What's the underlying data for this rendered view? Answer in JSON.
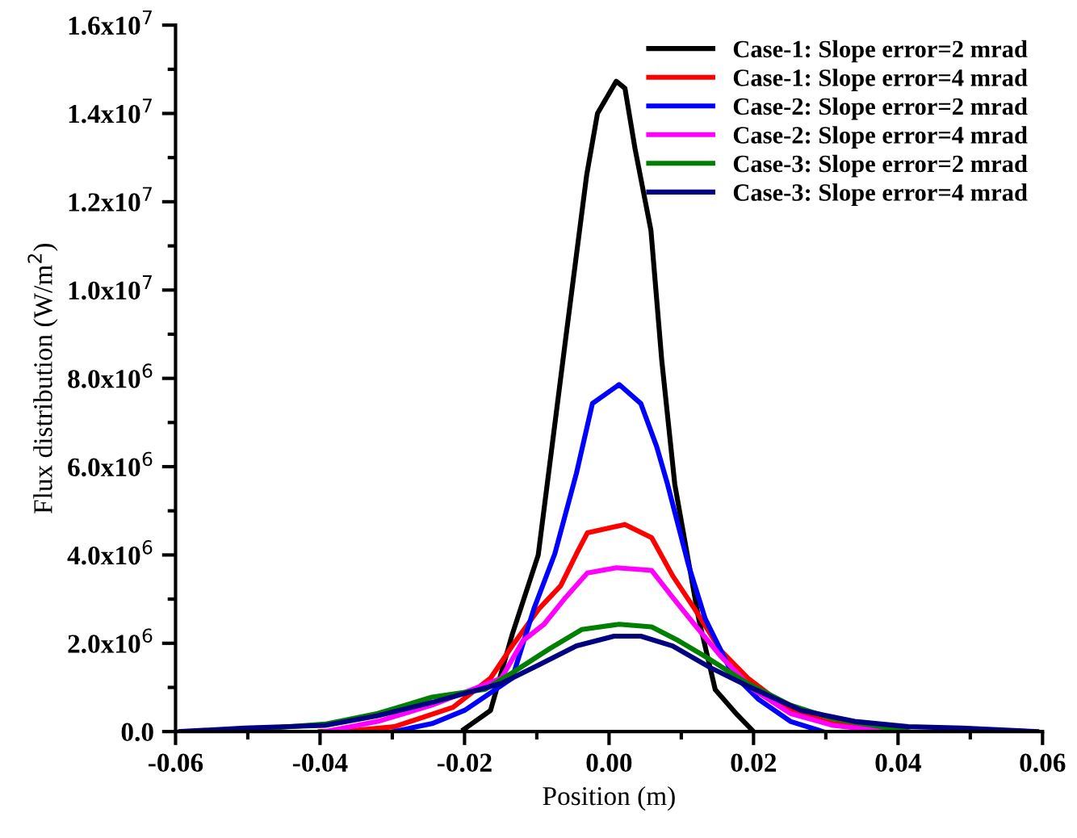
{
  "chart_data": {
    "type": "line",
    "xlabel": "Position (m)",
    "ylabel": "Flux distribution (W/m$^{2}$)",
    "xlim": [
      -0.06,
      0.06
    ],
    "xticks": [
      {
        "value": -0.06,
        "label": "-0.06"
      },
      {
        "value": -0.04,
        "label": "-0.04"
      },
      {
        "value": -0.02,
        "label": "-0.02"
      },
      {
        "value": 0,
        "label": "0.00"
      },
      {
        "value": 0.02,
        "label": "0.02"
      },
      {
        "value": 0.04,
        "label": "0.04"
      },
      {
        "value": 0.06,
        "label": "0.06"
      }
    ],
    "ylim": [
      0,
      16000000
    ],
    "yticks": [
      {
        "value": 0,
        "label": "0.0"
      },
      {
        "value": 2000000,
        "label": "2.0x10$^{6}$"
      },
      {
        "value": 4000000,
        "label": "4.0x10$^{6}$"
      },
      {
        "value": 6000000,
        "label": "6.0x10$^{6}$"
      },
      {
        "value": 8000000,
        "label": "8.0x10$^{6}$"
      },
      {
        "value": 10000000,
        "label": "1.0x10$^{7}$"
      },
      {
        "value": 12000000,
        "label": "1.2x10$^{7}$"
      },
      {
        "value": 14000000,
        "label": "1.4x10$^{7}$"
      },
      {
        "value": 16000000,
        "label": "1.6x10$^{7}$"
      }
    ],
    "grid": false,
    "legend": "top right",
    "marker": "none",
    "line_style": "solid",
    "series": [
      {
        "name": "Case-1: Slope error=2 mrad",
        "color": "#000000",
        "x": [
          -0.0201,
          -0.0164,
          -0.0134,
          -0.0098,
          -0.006,
          -0.0031,
          -0.0016,
          0.001,
          0.0022,
          0.0036,
          0.0058,
          0.0073,
          0.0091,
          0.0124,
          0.0147,
          0.0178,
          0.02
        ],
        "values": [
          50000,
          480000,
          2200000,
          4000000,
          8900000,
          12600000,
          14000000,
          14730000,
          14570000,
          13200000,
          11350000,
          8400000,
          5600000,
          2560000,
          950000,
          370000,
          0
        ]
      },
      {
        "name": "Case-1: Slope error=4 mrad",
        "color": "#ff0000",
        "x": [
          -0.04,
          -0.0356,
          -0.0297,
          -0.0216,
          -0.0164,
          -0.0134,
          -0.0097,
          -0.0067,
          -0.0045,
          -0.003,
          0.0022,
          0.0059,
          0.0088,
          0.0118,
          0.0155,
          0.0192,
          0.0251,
          0.031,
          0.04
        ],
        "values": [
          0,
          20000,
          110000,
          550000,
          1210000,
          1940000,
          2780000,
          3300000,
          4030000,
          4500000,
          4690000,
          4390000,
          3530000,
          2790000,
          1830000,
          1210000,
          480000,
          180000,
          0
        ]
      },
      {
        "name": "Case-2: Slope error=2 mrad",
        "color": "#0000ff",
        "x": [
          -0.0298,
          -0.0245,
          -0.02,
          -0.0134,
          -0.0104,
          -0.0075,
          -0.0045,
          -0.0023,
          0.0014,
          0.0044,
          0.0066,
          0.0081,
          0.011,
          0.0133,
          0.017,
          0.0207,
          0.0251,
          0.0296
        ],
        "values": [
          0,
          180000,
          480000,
          1210000,
          2780000,
          4030000,
          5860000,
          7430000,
          7860000,
          7430000,
          6450000,
          5600000,
          3770000,
          2560000,
          1330000,
          730000,
          230000,
          0
        ]
      },
      {
        "name": "Case-2: Slope error=4 mrad",
        "color": "#ff00ff",
        "x": [
          -0.0393,
          -0.032,
          -0.0245,
          -0.0149,
          -0.0119,
          -0.009,
          -0.006,
          -0.003,
          0.001,
          0.0059,
          0.0088,
          0.0118,
          0.0155,
          0.0199,
          0.0251,
          0.031,
          0.037,
          0.04
        ],
        "values": [
          0,
          230000,
          600000,
          1210000,
          2060000,
          2430000,
          3040000,
          3590000,
          3710000,
          3650000,
          3040000,
          2430000,
          1700000,
          960000,
          410000,
          140000,
          30000,
          0
        ]
      },
      {
        "name": "Case-3: Slope error=2 mrad",
        "color": "#008000",
        "x": [
          -0.05,
          -0.0467,
          -0.0393,
          -0.032,
          -0.0245,
          -0.0171,
          -0.0134,
          -0.0082,
          -0.0038,
          0.0014,
          0.0059,
          0.0096,
          0.0133,
          0.0192,
          0.0251,
          0.031,
          0.0377,
          0.0414
        ],
        "values": [
          0,
          80000,
          170000,
          410000,
          780000,
          960000,
          1330000,
          1880000,
          2310000,
          2430000,
          2370000,
          2060000,
          1700000,
          1090000,
          600000,
          290000,
          110000,
          0
        ]
      },
      {
        "name": "Case-3: Slope error=4 mrad",
        "color": "#000080",
        "x": [
          -0.0593,
          -0.0504,
          -0.0393,
          -0.032,
          -0.0245,
          -0.0149,
          -0.0097,
          -0.0045,
          0.0007,
          0.0044,
          0.0088,
          0.014,
          0.0192,
          0.0266,
          0.034,
          0.0414,
          0.0488,
          0.0592
        ],
        "values": [
          0,
          80000,
          140000,
          360000,
          660000,
          1090000,
          1510000,
          1940000,
          2160000,
          2160000,
          1940000,
          1450000,
          1030000,
          480000,
          230000,
          110000,
          80000,
          0
        ]
      }
    ]
  }
}
